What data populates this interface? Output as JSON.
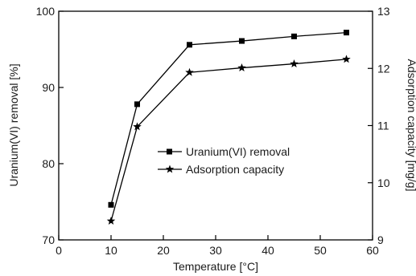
{
  "chart_data": {
    "type": "line",
    "xlabel": "Temperature [°C]",
    "ylabel": "Uranium(VI)  removal [%]",
    "y2label": "Adsorption capacity [mg/g]",
    "xlim": [
      0,
      60
    ],
    "ylim": [
      70,
      100
    ],
    "y2lim": [
      9,
      13
    ],
    "xticks": [
      0,
      10,
      20,
      30,
      40,
      50,
      60
    ],
    "yticks": [
      70,
      80,
      90,
      100
    ],
    "y2ticks": [
      9,
      10,
      11,
      12,
      13
    ],
    "grid": false,
    "legend_position": "center-right",
    "series": [
      {
        "name": "Uranium(VI)  removal",
        "axis": "left",
        "marker": "square",
        "color": "#000000",
        "x": [
          10,
          15,
          25,
          35,
          45,
          55
        ],
        "y": [
          74.6,
          87.8,
          95.6,
          96.1,
          96.7,
          97.2
        ]
      },
      {
        "name": "Adsorption capacity",
        "axis": "right",
        "marker": "star",
        "color": "#000000",
        "x": [
          10,
          15,
          25,
          35,
          45,
          55
        ],
        "y": [
          9.33,
          10.98,
          11.93,
          12.01,
          12.08,
          12.16
        ]
      }
    ]
  }
}
